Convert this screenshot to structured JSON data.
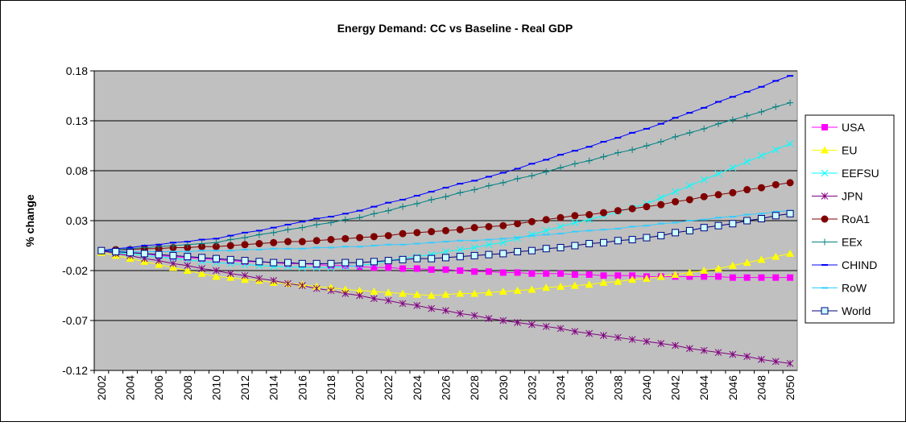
{
  "chart_data": {
    "type": "line",
    "title": "Energy Demand: CC vs Baseline  -  Real GDP",
    "y_label": "% change",
    "categories": [
      "2002",
      null,
      "2004",
      null,
      "2006",
      null,
      "2008",
      null,
      "2010",
      null,
      "2012",
      null,
      "2014",
      null,
      "2016",
      null,
      "2018",
      null,
      "2020",
      null,
      "2022",
      null,
      "2024",
      null,
      "2026",
      null,
      "2028",
      null,
      "2030",
      null,
      "2032",
      null,
      "2034",
      null,
      "2036",
      null,
      "2038",
      null,
      "2040",
      null,
      "2042",
      null,
      "2044",
      null,
      "2046",
      null,
      "2048",
      null,
      "2050"
    ],
    "ylim": [
      -0.12,
      0.18
    ],
    "yticks": [
      -0.12,
      -0.07,
      -0.02,
      0.03,
      0.08,
      0.13,
      0.18
    ],
    "grid": true,
    "legend": "right",
    "series": [
      {
        "name": "USA",
        "color": "#ff00ff",
        "marker": "square",
        "values": [
          0,
          -0.001,
          -0.002,
          -0.003,
          -0.005,
          -0.006,
          -0.007,
          -0.008,
          -0.009,
          -0.01,
          -0.011,
          -0.011,
          -0.012,
          -0.013,
          -0.013,
          -0.014,
          -0.015,
          -0.015,
          -0.016,
          -0.017,
          -0.017,
          -0.018,
          -0.018,
          -0.019,
          -0.019,
          -0.02,
          -0.021,
          -0.021,
          -0.022,
          -0.022,
          -0.023,
          -0.023,
          -0.023,
          -0.024,
          -0.024,
          -0.025,
          -0.025,
          -0.025,
          -0.026,
          -0.026,
          -0.026,
          -0.026,
          -0.026,
          -0.026,
          -0.027,
          -0.027,
          -0.027,
          -0.027,
          -0.027
        ]
      },
      {
        "name": "EU",
        "color": "#ffff00",
        "marker": "triangle",
        "values": [
          -0.002,
          -0.005,
          -0.008,
          -0.011,
          -0.014,
          -0.017,
          -0.02,
          -0.023,
          -0.026,
          -0.027,
          -0.029,
          -0.03,
          -0.032,
          -0.033,
          -0.034,
          -0.036,
          -0.037,
          -0.039,
          -0.04,
          -0.041,
          -0.042,
          -0.043,
          -0.044,
          -0.045,
          -0.044,
          -0.043,
          -0.043,
          -0.042,
          -0.041,
          -0.04,
          -0.039,
          -0.037,
          -0.036,
          -0.035,
          -0.034,
          -0.032,
          -0.031,
          -0.029,
          -0.028,
          -0.026,
          -0.024,
          -0.022,
          -0.02,
          -0.018,
          -0.015,
          -0.012,
          -0.009,
          -0.006,
          -0.003
        ]
      },
      {
        "name": "EEFSU",
        "color": "#00ffff",
        "marker": "x",
        "values": [
          0,
          -0.002,
          -0.003,
          -0.005,
          -0.006,
          -0.008,
          -0.009,
          -0.011,
          -0.012,
          -0.013,
          -0.014,
          -0.015,
          -0.016,
          -0.016,
          -0.017,
          -0.017,
          -0.017,
          -0.016,
          -0.015,
          -0.013,
          -0.01,
          -0.008,
          -0.006,
          -0.004,
          -0.001,
          0.001,
          0.003,
          0.006,
          0.008,
          0.012,
          0.016,
          0.02,
          0.024,
          0.028,
          0.031,
          0.035,
          0.039,
          0.043,
          0.047,
          0.053,
          0.059,
          0.065,
          0.071,
          0.077,
          0.083,
          0.089,
          0.095,
          0.101,
          0.107
        ]
      },
      {
        "name": "JPN",
        "color": "#800080",
        "marker": "star",
        "values": [
          0,
          -0.003,
          -0.005,
          -0.008,
          -0.01,
          -0.013,
          -0.015,
          -0.018,
          -0.02,
          -0.023,
          -0.025,
          -0.028,
          -0.03,
          -0.033,
          -0.035,
          -0.038,
          -0.04,
          -0.043,
          -0.045,
          -0.048,
          -0.05,
          -0.053,
          -0.055,
          -0.058,
          -0.06,
          -0.063,
          -0.065,
          -0.068,
          -0.07,
          -0.072,
          -0.074,
          -0.076,
          -0.078,
          -0.081,
          -0.083,
          -0.085,
          -0.087,
          -0.089,
          -0.091,
          -0.093,
          -0.095,
          -0.098,
          -0.1,
          -0.102,
          -0.104,
          -0.106,
          -0.109,
          -0.111,
          -0.113
        ]
      },
      {
        "name": "RoA1",
        "color": "#800000",
        "marker": "circle",
        "values": [
          0,
          0.001,
          0.001,
          0.002,
          0.002,
          0.003,
          0.003,
          0.004,
          0.004,
          0.005,
          0.006,
          0.007,
          0.008,
          0.009,
          0.009,
          0.01,
          0.011,
          0.012,
          0.013,
          0.014,
          0.015,
          0.017,
          0.018,
          0.019,
          0.02,
          0.021,
          0.023,
          0.024,
          0.025,
          0.027,
          0.029,
          0.031,
          0.033,
          0.035,
          0.036,
          0.038,
          0.04,
          0.042,
          0.044,
          0.046,
          0.049,
          0.051,
          0.054,
          0.056,
          0.058,
          0.061,
          0.063,
          0.066,
          0.068
        ]
      },
      {
        "name": "EEx",
        "color": "#008080",
        "marker": "plus",
        "values": [
          0,
          0.001,
          0.002,
          0.003,
          0.004,
          0.005,
          0.006,
          0.007,
          0.008,
          0.011,
          0.013,
          0.016,
          0.018,
          0.021,
          0.023,
          0.026,
          0.028,
          0.031,
          0.033,
          0.037,
          0.04,
          0.044,
          0.047,
          0.051,
          0.054,
          0.058,
          0.061,
          0.065,
          0.068,
          0.072,
          0.075,
          0.079,
          0.083,
          0.087,
          0.09,
          0.094,
          0.098,
          0.101,
          0.105,
          0.109,
          0.114,
          0.118,
          0.122,
          0.127,
          0.131,
          0.135,
          0.139,
          0.144,
          0.148
        ]
      },
      {
        "name": "CHIND",
        "color": "#0000ff",
        "marker": "dash",
        "values": [
          0,
          0.002,
          0.003,
          0.005,
          0.006,
          0.008,
          0.009,
          0.011,
          0.012,
          0.015,
          0.018,
          0.02,
          0.023,
          0.026,
          0.029,
          0.032,
          0.034,
          0.037,
          0.04,
          0.044,
          0.048,
          0.051,
          0.055,
          0.059,
          0.063,
          0.067,
          0.07,
          0.074,
          0.078,
          0.082,
          0.087,
          0.091,
          0.096,
          0.1,
          0.104,
          0.109,
          0.113,
          0.118,
          0.122,
          0.127,
          0.133,
          0.138,
          0.143,
          0.149,
          0.154,
          0.159,
          0.164,
          0.17,
          0.175
        ]
      },
      {
        "name": "RoW",
        "color": "#33ccff",
        "marker": "dash",
        "values": [
          0,
          0,
          -0.001,
          -0.001,
          -0.001,
          -0.001,
          -0.001,
          0,
          0,
          0,
          0.001,
          0.001,
          0.002,
          0.002,
          0.002,
          0.003,
          0.003,
          0.004,
          0.004,
          0.005,
          0.006,
          0.006,
          0.007,
          0.008,
          0.009,
          0.01,
          0.01,
          0.011,
          0.012,
          0.013,
          0.015,
          0.016,
          0.017,
          0.019,
          0.02,
          0.021,
          0.022,
          0.024,
          0.025,
          0.027,
          0.028,
          0.03,
          0.031,
          0.033,
          0.034,
          0.036,
          0.037,
          0.039,
          0.04
        ]
      },
      {
        "name": "World",
        "color": "#000080",
        "marker": "hollow-square",
        "values": [
          0,
          -0.001,
          -0.002,
          -0.003,
          -0.004,
          -0.005,
          -0.006,
          -0.007,
          -0.008,
          -0.009,
          -0.01,
          -0.011,
          -0.012,
          -0.012,
          -0.013,
          -0.013,
          -0.013,
          -0.012,
          -0.012,
          -0.011,
          -0.01,
          -0.009,
          -0.008,
          -0.008,
          -0.007,
          -0.006,
          -0.005,
          -0.004,
          -0.003,
          -0.001,
          0,
          0.002,
          0.003,
          0.005,
          0.007,
          0.008,
          0.01,
          0.011,
          0.013,
          0.015,
          0.018,
          0.02,
          0.023,
          0.025,
          0.027,
          0.03,
          0.032,
          0.035,
          0.037
        ]
      }
    ]
  }
}
